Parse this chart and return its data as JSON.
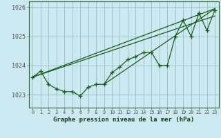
{
  "background_color": "#cce8f0",
  "plot_bg_color": "#cce8f0",
  "grid_color": "#88bbbb",
  "line_color": "#1a5c1a",
  "xlabel": "Graphe pression niveau de la mer (hPa)",
  "xlim": [
    -0.5,
    23.5
  ],
  "ylim": [
    1022.55,
    1026.2
  ],
  "yticks": [
    1023,
    1024,
    1025,
    1026
  ],
  "xticks": [
    0,
    1,
    2,
    3,
    4,
    5,
    6,
    7,
    8,
    9,
    10,
    11,
    12,
    13,
    14,
    15,
    16,
    17,
    18,
    19,
    20,
    21,
    22,
    23
  ],
  "hours": [
    0,
    1,
    2,
    3,
    4,
    5,
    6,
    7,
    8,
    9,
    10,
    11,
    12,
    13,
    14,
    15,
    16,
    17,
    18,
    19,
    20,
    21,
    22,
    23
  ],
  "pressure_main": [
    1023.6,
    1023.8,
    1023.35,
    1023.2,
    1023.1,
    1023.1,
    1022.95,
    1023.25,
    1023.35,
    1023.35,
    1023.75,
    1023.95,
    1024.2,
    1024.3,
    1024.45,
    1024.45,
    1024.0,
    1024.0,
    1025.0,
    1025.55,
    1025.0,
    1025.8,
    1025.2,
    1025.9
  ],
  "trend1_x": [
    0,
    23
  ],
  "trend1_y": [
    1023.6,
    1025.95
  ],
  "trend2_x": [
    0,
    23
  ],
  "trend2_y": [
    1023.6,
    1025.7
  ],
  "trend3_x": [
    9,
    23
  ],
  "trend3_y": [
    1023.35,
    1025.95
  ]
}
